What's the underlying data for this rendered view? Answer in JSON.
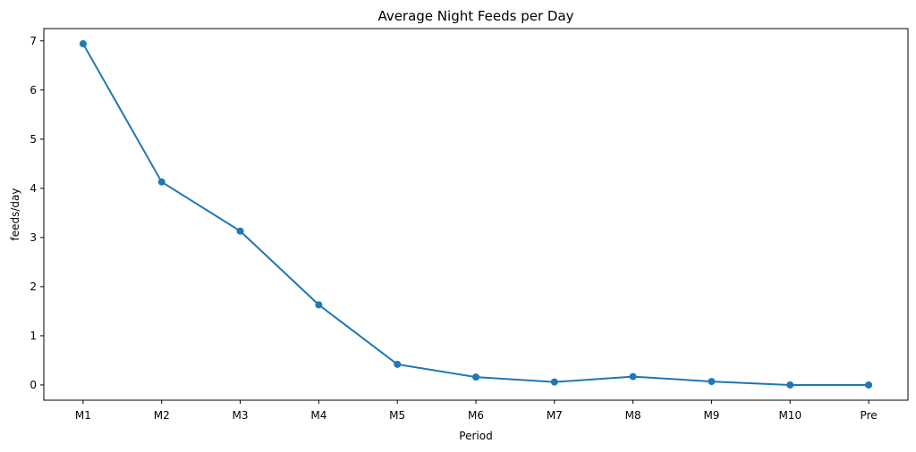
{
  "chart_data": {
    "type": "line",
    "title": "Average Night Feeds per Day",
    "xlabel": "Period",
    "ylabel": "feeds/day",
    "categories": [
      "M1",
      "M2",
      "M3",
      "M4",
      "M5",
      "M6",
      "M7",
      "M8",
      "M9",
      "M10",
      "Pre"
    ],
    "values": [
      6.94,
      4.13,
      3.13,
      1.63,
      0.42,
      0.16,
      0.06,
      0.17,
      0.07,
      0.0,
      0.0
    ],
    "yticks": [
      0,
      1,
      2,
      3,
      4,
      5,
      6,
      7
    ],
    "ylim": [
      -0.31,
      7.25
    ],
    "grid": false,
    "legend_position": "none",
    "line_color": "#1f77b4",
    "marker": "circle",
    "marker_radius": 4,
    "line_width": 2,
    "axis_color": "#000000",
    "text_color": "#000000",
    "background_color": "#ffffff"
  }
}
